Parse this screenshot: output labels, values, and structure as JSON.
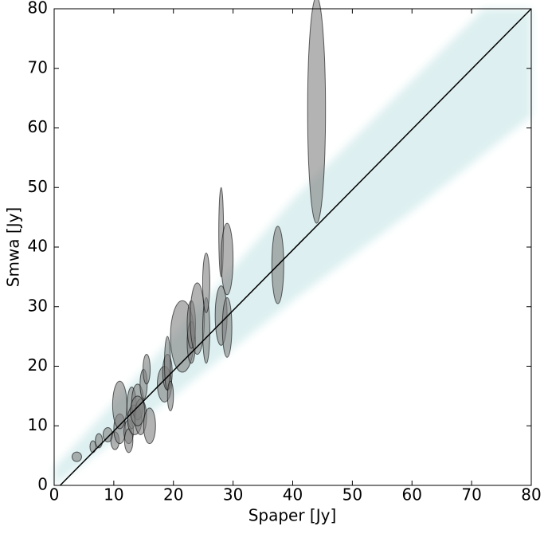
{
  "chart_data": {
    "type": "scatter",
    "xlabel": "Spaper [Jy]",
    "ylabel": "Smwa [Jy]",
    "xlim": [
      0,
      80
    ],
    "ylim": [
      0,
      80
    ],
    "xticks": [
      0,
      10,
      20,
      30,
      40,
      50,
      60,
      70,
      80
    ],
    "yticks": [
      0,
      10,
      20,
      30,
      40,
      50,
      60,
      70,
      80
    ],
    "color": "#808080",
    "x": [
      3.8,
      6.5,
      7.5,
      9,
      10.2,
      11,
      11,
      12.5,
      12.5,
      13,
      13.5,
      14,
      14.5,
      15,
      15.5,
      16,
      14,
      18.5,
      19,
      19,
      19.5,
      21.5,
      23,
      23,
      24,
      25.5,
      25.5,
      28,
      28,
      29,
      29,
      37.5,
      44
    ],
    "y": [
      4.8,
      6.5,
      7.5,
      8.5,
      7.5,
      9.5,
      13.5,
      9,
      7.5,
      13,
      11,
      14,
      11.5,
      17,
      19.5,
      10,
      12.5,
      17,
      19,
      20.5,
      15,
      25,
      24,
      27,
      28,
      26,
      34,
      42.5,
      28.5,
      38,
      26.5,
      37,
      63
    ],
    "xerr": [
      0.8,
      0.5,
      0.6,
      0.8,
      0.7,
      1,
      1.2,
      0.8,
      0.7,
      0.8,
      1.2,
      1,
      1,
      0.6,
      0.6,
      1,
      1.2,
      1.2,
      0.8,
      0.5,
      0.5,
      2,
      0.7,
      0.7,
      1.2,
      0.6,
      0.6,
      0.4,
      1,
      1,
      0.8,
      1,
      1.5
    ],
    "yerr": [
      0.8,
      1,
      1.2,
      1.2,
      1.5,
      2.5,
      4,
      2,
      2,
      3.5,
      2.5,
      3,
      3,
      2.5,
      2.5,
      3,
      2.5,
      3,
      3,
      4.5,
      2.5,
      6,
      3.5,
      4,
      6,
      5.5,
      5,
      7.5,
      5,
      6,
      5,
      6.5,
      19
    ],
    "line": {
      "x": [
        1,
        80
      ],
      "y": [
        0,
        80
      ],
      "color": "#000000"
    }
  }
}
